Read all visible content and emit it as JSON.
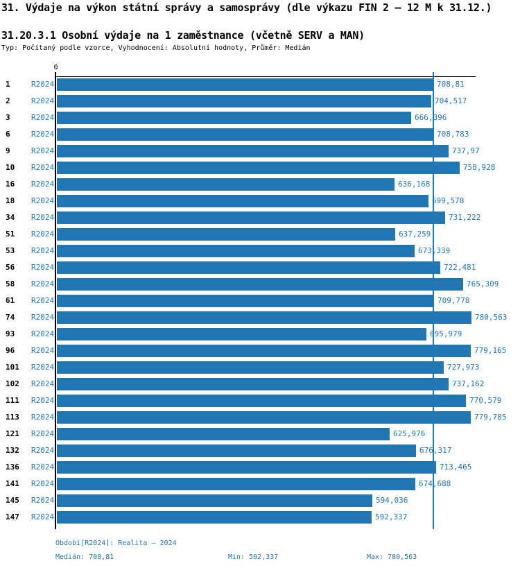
{
  "header": {
    "title": "31. Výdaje na výkon státní správy a samosprávy (dle výkazu FIN 2 – 12 M k 31.12.)",
    "subtitle": "31.20.3.1 Osobní výdaje na 1 zaměstnance (včetně SERV a MAN)",
    "meta": "Typ: Počítaný podle vzorce, Vyhodnocení: Absolutní hodnoty, Průměr: Medián"
  },
  "chart_data": {
    "type": "bar",
    "orientation": "horizontal",
    "title": "31.20.3.1 Osobní výdaje na 1 zaměstnance (včetně SERV a MAN)",
    "series_label": "R2024",
    "categories": [
      "1",
      "2",
      "3",
      "6",
      "9",
      "10",
      "16",
      "18",
      "34",
      "51",
      "53",
      "56",
      "58",
      "61",
      "74",
      "93",
      "96",
      "101",
      "102",
      "111",
      "113",
      "121",
      "132",
      "136",
      "141",
      "145",
      "147"
    ],
    "values": [
      708.81,
      704.517,
      666.396,
      708.783,
      737.97,
      758.928,
      636.168,
      699.578,
      731.222,
      637.259,
      673.339,
      722.481,
      765.309,
      709.778,
      780.563,
      695.979,
      779.165,
      727.973,
      737.162,
      770.579,
      779.785,
      625.976,
      676.317,
      713.465,
      674.688,
      594.036,
      592.337
    ],
    "value_labels": [
      "708,81",
      "704,517",
      "666,396",
      "708,783",
      "737,97",
      "758,928",
      "636,168",
      "699,578",
      "731,222",
      "637,259",
      "673,339",
      "722,481",
      "765,309",
      "709,778",
      "780,563",
      "695,979",
      "779,165",
      "727,973",
      "737,162",
      "770,579",
      "779,785",
      "625,976",
      "676,317",
      "713,465",
      "674,688",
      "594,036",
      "592,337"
    ],
    "axis": {
      "origin_label": "0",
      "xlim": [
        0,
        788
      ],
      "median_marker": 708.81,
      "grid": false
    },
    "legend_position": "none",
    "colors": {
      "bar": "#2077b4",
      "label_text": "#2077b4",
      "axis": "#000000"
    },
    "stats": {
      "median": 708.81,
      "min": 592.337,
      "max": 780.563
    }
  },
  "footer": {
    "period": "Období[R2024]: Realita – 2024",
    "median": "Medián: 708,81",
    "min": "Min: 592,337",
    "max": "Max: 780,563"
  }
}
